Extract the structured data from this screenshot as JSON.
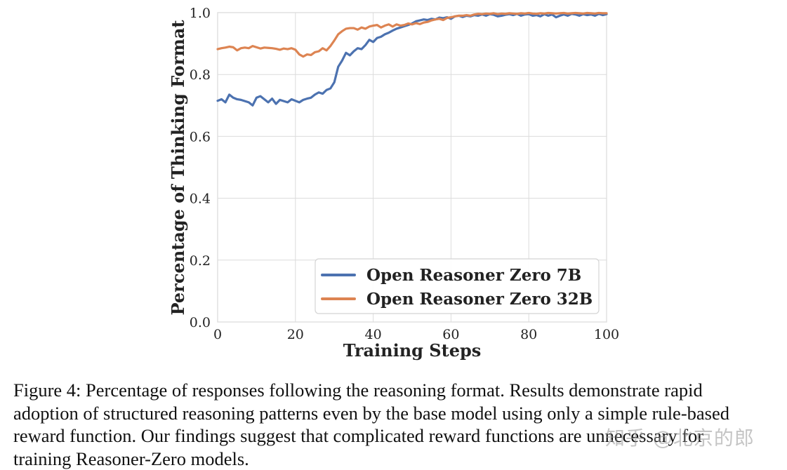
{
  "colors": {
    "series_7b": "#4c72b0",
    "series_32b": "#dd8452",
    "grid": "#dcdcdc",
    "frame": "#cfcfcf"
  },
  "chart_data": {
    "type": "line",
    "title": "",
    "xlabel": "Training Steps",
    "ylabel": "Percentage of Thinking Format",
    "xlim": [
      0,
      100
    ],
    "ylim": [
      0.0,
      1.0
    ],
    "xticks": [
      0,
      20,
      40,
      60,
      80,
      100
    ],
    "yticks": [
      0.0,
      0.2,
      0.4,
      0.6,
      0.8,
      1.0
    ],
    "ytick_labels": [
      "0.0",
      "0.2",
      "0.4",
      "0.6",
      "0.8",
      "1.0"
    ],
    "grid": true,
    "legend_position": "lower-right",
    "x": [
      0,
      1,
      2,
      3,
      4,
      5,
      6,
      7,
      8,
      9,
      10,
      11,
      12,
      13,
      14,
      15,
      16,
      17,
      18,
      19,
      20,
      21,
      22,
      23,
      24,
      25,
      26,
      27,
      28,
      29,
      30,
      31,
      32,
      33,
      34,
      35,
      36,
      37,
      38,
      39,
      40,
      41,
      42,
      43,
      44,
      45,
      46,
      47,
      48,
      49,
      50,
      51,
      52,
      53,
      54,
      55,
      56,
      57,
      58,
      59,
      60,
      61,
      62,
      63,
      64,
      65,
      66,
      67,
      68,
      69,
      70,
      71,
      72,
      73,
      74,
      75,
      76,
      77,
      78,
      79,
      80,
      81,
      82,
      83,
      84,
      85,
      86,
      87,
      88,
      89,
      90,
      91,
      92,
      93,
      94,
      95,
      96,
      97,
      98,
      99,
      100
    ],
    "series": [
      {
        "name": "Open Reasoner Zero 7B",
        "color": "#4c72b0",
        "values": [
          0.715,
          0.72,
          0.71,
          0.735,
          0.725,
          0.72,
          0.718,
          0.714,
          0.71,
          0.7,
          0.725,
          0.73,
          0.72,
          0.71,
          0.722,
          0.705,
          0.718,
          0.714,
          0.71,
          0.72,
          0.715,
          0.71,
          0.718,
          0.722,
          0.725,
          0.735,
          0.742,
          0.738,
          0.75,
          0.755,
          0.775,
          0.825,
          0.845,
          0.87,
          0.862,
          0.875,
          0.885,
          0.882,
          0.895,
          0.912,
          0.905,
          0.918,
          0.922,
          0.93,
          0.935,
          0.942,
          0.948,
          0.952,
          0.956,
          0.96,
          0.965,
          0.972,
          0.975,
          0.978,
          0.976,
          0.98,
          0.978,
          0.984,
          0.982,
          0.985,
          0.98,
          0.988,
          0.99,
          0.986,
          0.99,
          0.988,
          0.992,
          0.99,
          0.994,
          0.99,
          0.995,
          0.993,
          0.988,
          0.99,
          0.993,
          0.995,
          0.992,
          0.996,
          0.99,
          0.994,
          0.995,
          0.99,
          0.992,
          0.988,
          0.995,
          0.99,
          0.994,
          0.985,
          0.99,
          0.994,
          0.99,
          0.996,
          0.994,
          0.99,
          0.995,
          0.992,
          0.994,
          0.99,
          0.996,
          0.992,
          0.995
        ]
      },
      {
        "name": "Open Reasoner Zero 32B",
        "color": "#dd8452",
        "values": [
          0.882,
          0.885,
          0.887,
          0.89,
          0.888,
          0.878,
          0.885,
          0.887,
          0.885,
          0.892,
          0.888,
          0.884,
          0.887,
          0.886,
          0.885,
          0.883,
          0.88,
          0.884,
          0.882,
          0.885,
          0.88,
          0.865,
          0.858,
          0.865,
          0.863,
          0.872,
          0.875,
          0.885,
          0.878,
          0.892,
          0.91,
          0.93,
          0.94,
          0.948,
          0.95,
          0.95,
          0.945,
          0.952,
          0.948,
          0.955,
          0.958,
          0.96,
          0.952,
          0.958,
          0.962,
          0.955,
          0.962,
          0.958,
          0.96,
          0.965,
          0.962,
          0.966,
          0.963,
          0.968,
          0.97,
          0.975,
          0.978,
          0.98,
          0.976,
          0.983,
          0.985,
          0.988,
          0.99,
          0.99,
          0.992,
          0.99,
          0.994,
          0.996,
          0.995,
          0.997,
          0.996,
          0.998,
          0.995,
          0.997,
          0.996,
          0.998,
          0.997,
          0.996,
          0.998,
          0.997,
          0.999,
          0.997,
          0.996,
          0.998,
          0.997,
          0.999,
          0.998,
          0.997,
          0.998,
          0.999,
          0.997,
          0.998,
          0.999,
          0.998,
          0.997,
          0.999,
          0.998,
          0.997,
          0.999,
          0.998,
          0.998
        ]
      }
    ]
  },
  "caption": {
    "lines": [
      "Figure 4: Percentage of responses following the reasoning format. Results demonstrate rapid",
      "adoption of structured reasoning patterns even by the base model using only a simple rule-based",
      "reward function. Our findings suggest that complicated reward functions are unnecessary for",
      "training Reasoner-Zero models."
    ]
  },
  "watermark": {
    "text": "知乎 @北京的郎"
  }
}
